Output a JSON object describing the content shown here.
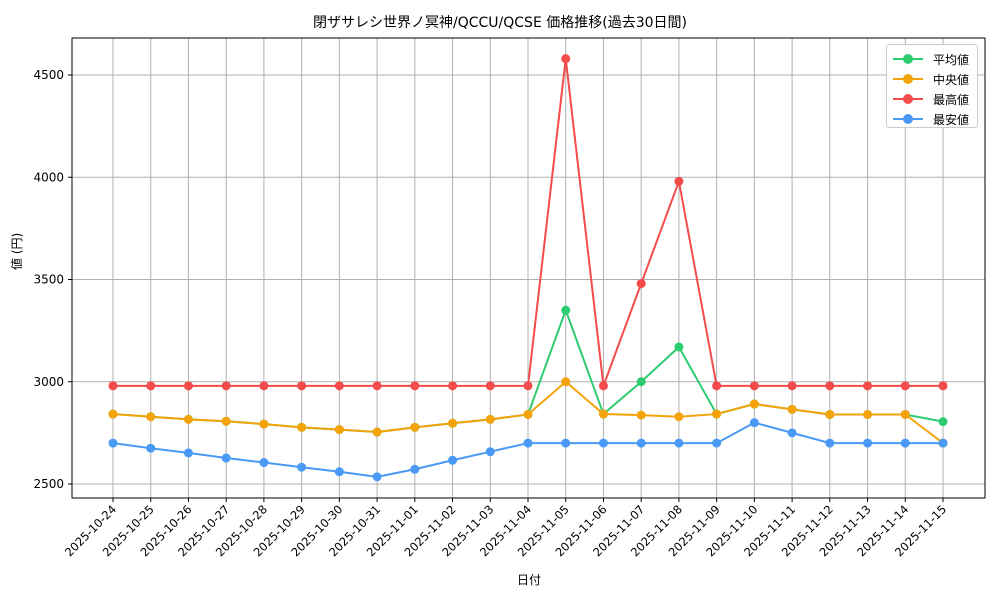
{
  "chart_data": {
    "type": "line",
    "title": "閉ザサレシ世界ノ冥神/QCCU/QCSE 価格推移(過去30日間)",
    "xlabel": "日付",
    "ylabel": "値 (円)",
    "ylim": [
      2430,
      4680
    ],
    "yticks": [
      2500,
      3000,
      3500,
      4000,
      4500
    ],
    "grid": true,
    "legend_position": "upper right",
    "categories": [
      "2025-10-24",
      "2025-10-25",
      "2025-10-26",
      "2025-10-27",
      "2025-10-28",
      "2025-10-29",
      "2025-10-30",
      "2025-10-31",
      "2025-11-01",
      "2025-11-02",
      "2025-11-03",
      "2025-11-04",
      "2025-11-05",
      "2025-11-06",
      "2025-11-07",
      "2025-11-08",
      "2025-11-09",
      "2025-11-10",
      "2025-11-11",
      "2025-11-12",
      "2025-11-13",
      "2025-11-14",
      "2025-11-15"
    ],
    "series": [
      {
        "name": "平均値",
        "color": "#2ecc71",
        "values": [
          2842,
          2829,
          2816,
          2807,
          2793,
          2777,
          2766,
          2754,
          2777,
          2797,
          2816,
          2840,
          3350,
          2842,
          3000,
          3170,
          2842,
          2891,
          2865,
          2840,
          2840,
          2840,
          2805
        ]
      },
      {
        "name": "中央値",
        "color": "#f5a30a",
        "values": [
          2842,
          2829,
          2816,
          2807,
          2793,
          2777,
          2766,
          2754,
          2777,
          2797,
          2816,
          2840,
          3000,
          2842,
          2837,
          2829,
          2842,
          2891,
          2865,
          2840,
          2840,
          2840,
          2700
        ]
      },
      {
        "name": "最高値",
        "color": "#f44b4b",
        "values": [
          2980,
          2980,
          2980,
          2980,
          2980,
          2980,
          2980,
          2980,
          2980,
          2980,
          2980,
          2980,
          4580,
          2980,
          3480,
          3980,
          2980,
          2980,
          2980,
          2980,
          2980,
          2980,
          2980
        ]
      },
      {
        "name": "最安値",
        "color": "#4a9af5",
        "values": [
          2700,
          2675,
          2652,
          2627,
          2605,
          2582,
          2560,
          2535,
          2572,
          2616,
          2658,
          2700,
          2700,
          2700,
          2700,
          2700,
          2700,
          2800,
          2750,
          2700,
          2700,
          2700,
          2700
        ]
      }
    ]
  },
  "legend": {
    "items": [
      {
        "label": "平均値",
        "color": "#2ecc71"
      },
      {
        "label": "中央値",
        "color": "#f5a30a"
      },
      {
        "label": "最高値",
        "color": "#f44b4b"
      },
      {
        "label": "最安値",
        "color": "#4a9af5"
      }
    ]
  }
}
